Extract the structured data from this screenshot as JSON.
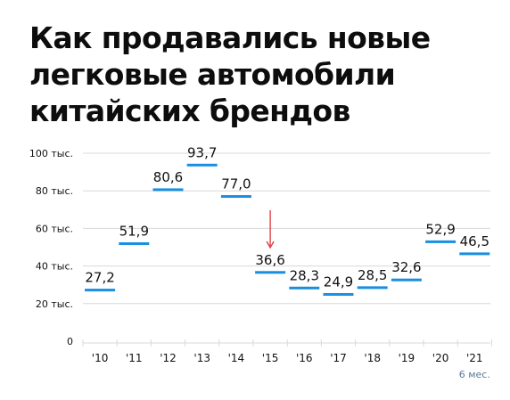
{
  "title_lines": [
    "Как продавались новые",
    "легковые автомобили",
    "китайских брендов"
  ],
  "colors": {
    "bar": "#1a8fe0",
    "arrow": "#e0323c",
    "grid": "#d8d8d8",
    "note": "#5b7a99"
  },
  "chart_data": {
    "type": "bar",
    "categories": [
      "'10",
      "'11",
      "'12",
      "'13",
      "'14",
      "'15",
      "'16",
      "'17",
      "'18",
      "'19",
      "'20",
      "'21"
    ],
    "values": [
      27.2,
      51.9,
      80.6,
      93.7,
      77.0,
      36.6,
      28.3,
      24.9,
      28.5,
      32.6,
      52.9,
      46.5
    ],
    "value_labels": [
      "27,2",
      "51,9",
      "80,6",
      "93,7",
      "77,0",
      "36,6",
      "28,3",
      "24,9",
      "28,5",
      "32,6",
      "52,9",
      "46,5"
    ],
    "yticks": [
      {
        "value": 0,
        "label": "0"
      },
      {
        "value": 20,
        "label": "20 тыс."
      },
      {
        "value": 40,
        "label": "40 тыс."
      },
      {
        "value": 60,
        "label": "60 тыс."
      },
      {
        "value": 80,
        "label": "80 тыс."
      },
      {
        "value": 100,
        "label": "100 тыс."
      }
    ],
    "ylim": [
      0,
      100
    ],
    "grid": true,
    "annotation": {
      "text": "6 мес.",
      "category": "'21"
    },
    "arrow_category": "'15"
  }
}
